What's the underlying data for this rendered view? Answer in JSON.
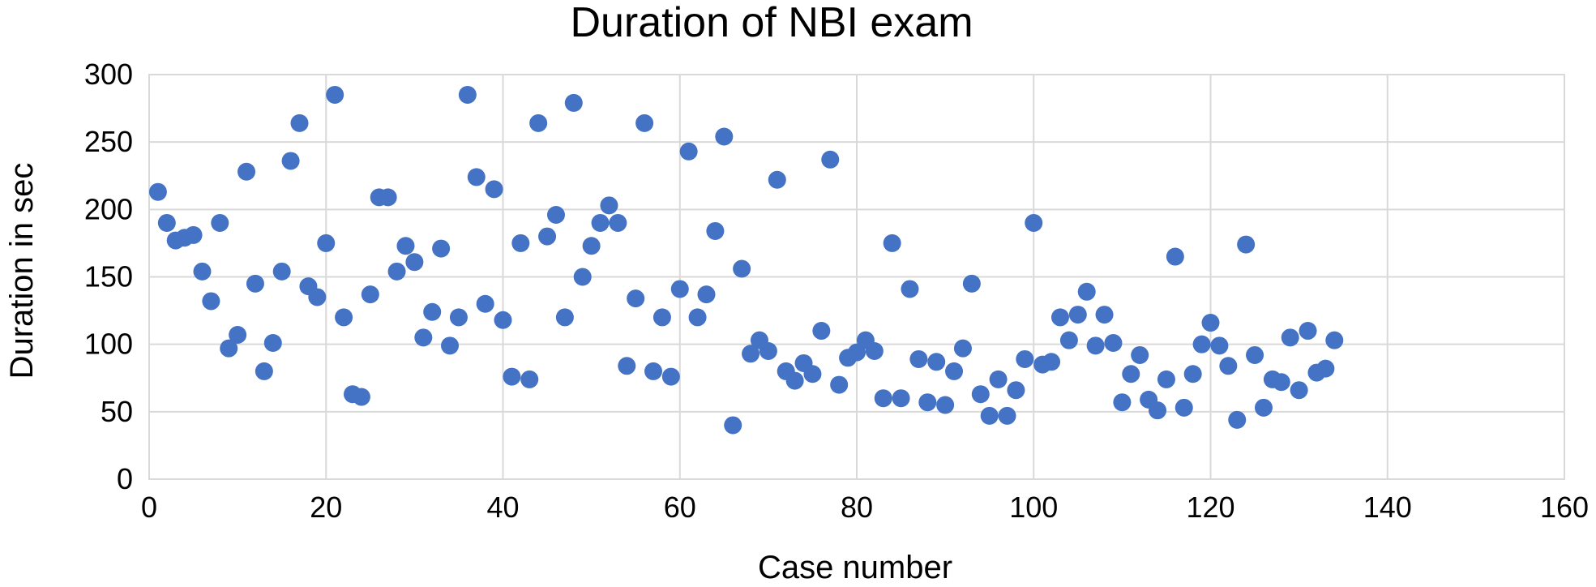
{
  "chart_data": {
    "type": "scatter",
    "title": "Duration of NBI exam",
    "xlabel": "Case number",
    "ylabel": "Duration in sec",
    "xlim": [
      0,
      160
    ],
    "ylim": [
      0,
      300
    ],
    "xticks": [
      0,
      20,
      40,
      60,
      80,
      100,
      120,
      140,
      160
    ],
    "yticks": [
      0,
      50,
      100,
      150,
      200,
      250,
      300
    ],
    "grid": true,
    "marker_color": "#4472C4",
    "series": [
      {
        "x": [
          1,
          2,
          3,
          4,
          5,
          6,
          7,
          8,
          9,
          10,
          11,
          12,
          13,
          14,
          15,
          16,
          17,
          18,
          19,
          20,
          21,
          22,
          23,
          24,
          25,
          26,
          27,
          28,
          29,
          30,
          31,
          32,
          33,
          34,
          35,
          36,
          37,
          38,
          39,
          40,
          41,
          42,
          43,
          44,
          45,
          46,
          47,
          48,
          49,
          50,
          51,
          52,
          53,
          54,
          55,
          56,
          57,
          58,
          59,
          60,
          61,
          62,
          63,
          64,
          65,
          66,
          67,
          68,
          69,
          70,
          71,
          72,
          73,
          74,
          75,
          76,
          77,
          78,
          79,
          80,
          81,
          82,
          83,
          84,
          85,
          86,
          87,
          88,
          89,
          90,
          91,
          92,
          93,
          94,
          95,
          96,
          97,
          98,
          99,
          100,
          101,
          102,
          103,
          104,
          105,
          106,
          107,
          108,
          109,
          110,
          111,
          112,
          113,
          114,
          115,
          116,
          117,
          118,
          119,
          120,
          121,
          122,
          123,
          124,
          125,
          126,
          127,
          128,
          129,
          130,
          131,
          132,
          133,
          134
        ],
        "y": [
          213,
          190,
          177,
          179,
          181,
          154,
          132,
          190,
          97,
          107,
          228,
          145,
          80,
          101,
          154,
          236,
          264,
          143,
          135,
          175,
          285,
          120,
          63,
          61,
          137,
          209,
          209,
          154,
          173,
          161,
          105,
          124,
          171,
          99,
          120,
          285,
          224,
          130,
          215,
          118,
          76,
          175,
          74,
          264,
          180,
          196,
          120,
          279,
          150,
          173,
          190,
          203,
          190,
          84,
          134,
          264,
          80,
          120,
          76,
          141,
          243,
          120,
          137,
          184,
          254,
          40,
          156,
          93,
          103,
          95,
          222,
          80,
          73,
          86,
          78,
          110,
          237,
          70,
          90,
          94,
          103,
          95,
          60,
          175,
          60,
          141,
          89,
          57,
          87,
          55,
          80,
          97,
          145,
          63,
          47,
          74,
          47,
          66,
          89,
          190,
          85,
          87,
          120,
          103,
          122,
          139,
          99,
          122,
          101,
          57,
          78,
          92,
          59,
          51,
          74,
          165,
          53,
          78,
          100,
          116,
          99,
          84,
          44,
          174,
          92,
          53,
          74,
          72,
          105,
          66,
          110,
          79,
          82,
          103
        ]
      }
    ]
  }
}
